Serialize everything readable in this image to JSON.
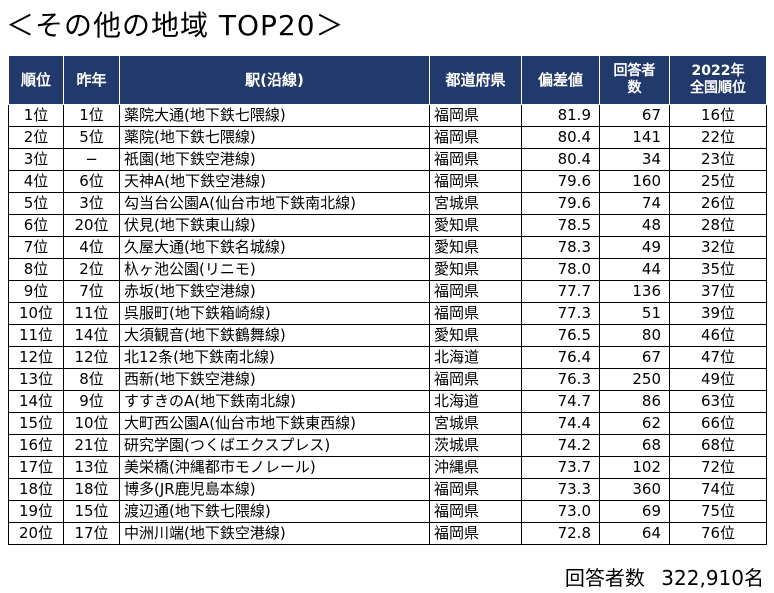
{
  "title": "＜その他の地域 TOP20＞",
  "header_color": "#223a6b",
  "headers": {
    "rank": "順位",
    "last_year": "昨年",
    "station": "駅(沿線)",
    "prefecture": "都道府県",
    "deviation": "偏差値",
    "respondents_l1": "回答者",
    "respondents_l2": "数",
    "national_l1": "2022年",
    "national_l2": "全国順位"
  },
  "rows": [
    {
      "rank": "1位",
      "last": "1位",
      "station": "薬院大通(地下鉄七隈線)",
      "pref": "福岡県",
      "dev": "81.9",
      "resp": "67",
      "nat": "16位"
    },
    {
      "rank": "2位",
      "last": "5位",
      "station": "薬院(地下鉄七隈線)",
      "pref": "福岡県",
      "dev": "80.4",
      "resp": "141",
      "nat": "22位"
    },
    {
      "rank": "3位",
      "last": "−",
      "station": "祇園(地下鉄空港線)",
      "pref": "福岡県",
      "dev": "80.4",
      "resp": "34",
      "nat": "23位"
    },
    {
      "rank": "4位",
      "last": "6位",
      "station": "天神A(地下鉄空港線)",
      "pref": "福岡県",
      "dev": "79.6",
      "resp": "160",
      "nat": "25位"
    },
    {
      "rank": "5位",
      "last": "3位",
      "station": "勾当台公園A(仙台市地下鉄南北線)",
      "pref": "宮城県",
      "dev": "79.6",
      "resp": "74",
      "nat": "26位"
    },
    {
      "rank": "6位",
      "last": "20位",
      "station": "伏見(地下鉄東山線)",
      "pref": "愛知県",
      "dev": "78.5",
      "resp": "48",
      "nat": "28位"
    },
    {
      "rank": "7位",
      "last": "4位",
      "station": "久屋大通(地下鉄名城線)",
      "pref": "愛知県",
      "dev": "78.3",
      "resp": "49",
      "nat": "32位"
    },
    {
      "rank": "8位",
      "last": "2位",
      "station": "杁ヶ池公園(リニモ)",
      "pref": "愛知県",
      "dev": "78.0",
      "resp": "44",
      "nat": "35位"
    },
    {
      "rank": "9位",
      "last": "7位",
      "station": "赤坂(地下鉄空港線)",
      "pref": "福岡県",
      "dev": "77.7",
      "resp": "136",
      "nat": "37位"
    },
    {
      "rank": "10位",
      "last": "11位",
      "station": "呉服町(地下鉄箱崎線)",
      "pref": "福岡県",
      "dev": "77.3",
      "resp": "51",
      "nat": "39位"
    },
    {
      "rank": "11位",
      "last": "14位",
      "station": "大須観音(地下鉄鶴舞線)",
      "pref": "愛知県",
      "dev": "76.5",
      "resp": "80",
      "nat": "46位"
    },
    {
      "rank": "12位",
      "last": "12位",
      "station": "北12条(地下鉄南北線)",
      "pref": "北海道",
      "dev": "76.4",
      "resp": "67",
      "nat": "47位"
    },
    {
      "rank": "13位",
      "last": "8位",
      "station": "西新(地下鉄空港線)",
      "pref": "福岡県",
      "dev": "76.3",
      "resp": "250",
      "nat": "49位"
    },
    {
      "rank": "14位",
      "last": "9位",
      "station": "すすきのA(地下鉄南北線)",
      "pref": "北海道",
      "dev": "74.7",
      "resp": "86",
      "nat": "63位"
    },
    {
      "rank": "15位",
      "last": "10位",
      "station": "大町西公園A(仙台市地下鉄東西線)",
      "pref": "宮城県",
      "dev": "74.4",
      "resp": "62",
      "nat": "66位"
    },
    {
      "rank": "16位",
      "last": "21位",
      "station": "研究学園(つくばエクスプレス)",
      "pref": "茨城県",
      "dev": "74.2",
      "resp": "68",
      "nat": "68位"
    },
    {
      "rank": "17位",
      "last": "13位",
      "station": "美栄橋(沖縄都市モノレール)",
      "pref": "沖縄県",
      "dev": "73.7",
      "resp": "102",
      "nat": "72位"
    },
    {
      "rank": "18位",
      "last": "18位",
      "station": "博多(JR鹿児島本線)",
      "pref": "福岡県",
      "dev": "73.3",
      "resp": "360",
      "nat": "74位"
    },
    {
      "rank": "19位",
      "last": "15位",
      "station": "渡辺通(地下鉄七隈線)",
      "pref": "福岡県",
      "dev": "73.0",
      "resp": "69",
      "nat": "75位"
    },
    {
      "rank": "20位",
      "last": "17位",
      "station": "中洲川端(地下鉄空港線)",
      "pref": "福岡県",
      "dev": "72.8",
      "resp": "64",
      "nat": "76位"
    }
  ],
  "footer": {
    "label": "回答者数",
    "count": "322,910名"
  }
}
